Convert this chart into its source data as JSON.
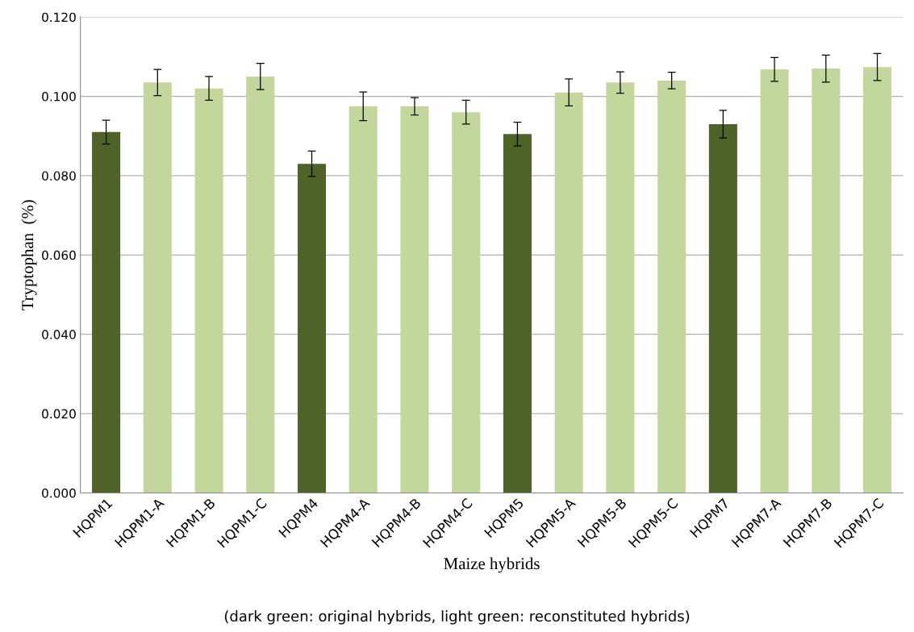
{
  "chart_data": {
    "type": "bar",
    "xlabel": "Maize hybrids",
    "ylabel": "Tryptophan  (%)",
    "categories": [
      "HQPM1",
      "HQPM1-A",
      "HQPM1-B",
      "HQPM1-C",
      "HQPM4",
      "HQPM4-A",
      "HQPM4-B",
      "HQPM4-C",
      "HQPM5",
      "HQPM5-A",
      "HQPM5-B",
      "HQPM5-C",
      "HQPM7",
      "HQPM7-A",
      "HQPM7-B",
      "HQPM7-C"
    ],
    "values": [
      0.091,
      0.1035,
      0.102,
      0.105,
      0.083,
      0.0975,
      0.0975,
      0.096,
      0.0905,
      0.101,
      0.1035,
      0.104,
      0.093,
      0.1068,
      0.107,
      0.1074
    ],
    "errors": [
      0.003,
      0.0033,
      0.003,
      0.0033,
      0.0032,
      0.0036,
      0.0022,
      0.003,
      0.003,
      0.0034,
      0.0027,
      0.0021,
      0.0035,
      0.003,
      0.0034,
      0.0034
    ],
    "colors": [
      "#4f6228",
      "#c3d69b",
      "#c3d69b",
      "#c3d69b",
      "#4f6228",
      "#c3d69b",
      "#c3d69b",
      "#c3d69b",
      "#4f6228",
      "#c3d69b",
      "#c3d69b",
      "#c3d69b",
      "#4f6228",
      "#c3d69b",
      "#c3d69b",
      "#c3d69b"
    ],
    "ylim": [
      0,
      0.12
    ],
    "yticks": [
      {
        "value": 0,
        "label": "0.000"
      },
      {
        "value": 0.02,
        "label": "0.020"
      },
      {
        "value": 0.04,
        "label": "0.040"
      },
      {
        "value": 0.06,
        "label": "0.060"
      },
      {
        "value": 0.08,
        "label": "0.080"
      },
      {
        "value": 0.1,
        "label": "0.100"
      },
      {
        "value": 0.12,
        "label": "0.120"
      }
    ],
    "grid": "y",
    "annotations": [
      "(dark green: original hybrids, light green: reconstituted hybrids)"
    ]
  }
}
